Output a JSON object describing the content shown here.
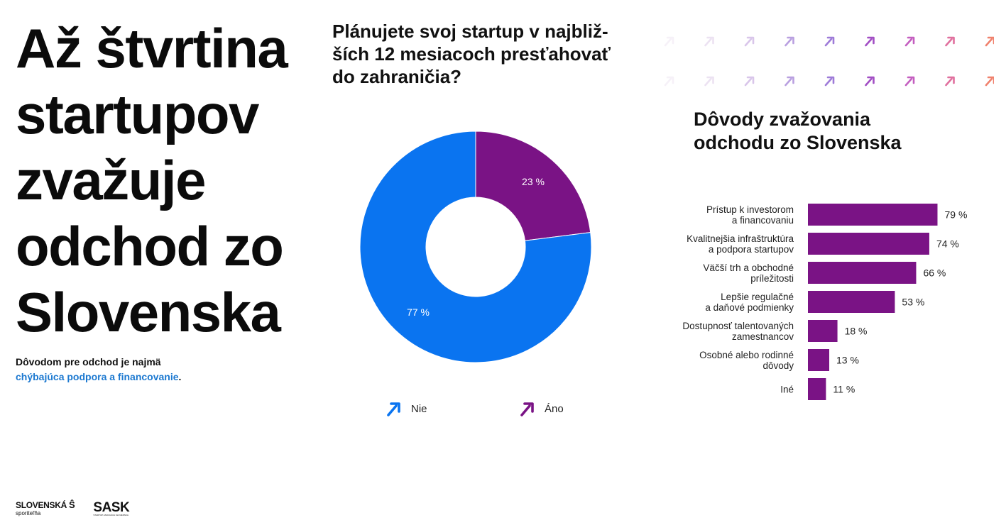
{
  "headline": {
    "lines": [
      "Až štvrtina",
      "startupov",
      "zvažuje",
      "odchod zo",
      "Slovenska"
    ]
  },
  "subline": {
    "text_1": "Dôvodom pre odchod je najmä",
    "highlight": "chýbajúca podpora a financovanie",
    "text_2": "."
  },
  "colors": {
    "blue": "#0a74f0",
    "purple": "#7a1385",
    "highlight_blue": "#1b78d0"
  },
  "chart_data": [
    {
      "type": "pie",
      "variant": "donut",
      "title": "Plánujete svoj startup v najbliž-ších 12 mesiacoch presťahovať do zahraničia?",
      "title_lines": [
        "Plánujete svoj startup v najbliž-",
        "ších 12 mesiacoch presťahovať",
        "do zahraničia?"
      ],
      "categories": [
        "Nie",
        "Áno"
      ],
      "values": [
        77,
        23
      ],
      "labels": [
        "77 %",
        "23 %"
      ],
      "colors": [
        "#0a74f0",
        "#7a1385"
      ],
      "legend": {
        "placement": "bottom",
        "icon": "arrow-up-right-icon"
      }
    },
    {
      "type": "bar",
      "orientation": "horizontal",
      "title": "Dôvody zvažovania odchodu zo Slovenska",
      "title_lines": [
        "Dôvody zvažovania",
        "odchodu zo Slovenska"
      ],
      "categories": [
        [
          "Prístup k investorom",
          "a financovaniu"
        ],
        [
          "Kvalitnejšia infraštruktúra",
          "a podpora startupov"
        ],
        [
          "Väčší trh a obchodné",
          "príležitosti"
        ],
        [
          "Lepšie regulačné",
          "a daňové podmienky"
        ],
        [
          "Dostupnosť talentovaných",
          "zamestnancov"
        ],
        [
          "Osobné alebo rodinné",
          "dôvody"
        ],
        [
          "Iné"
        ]
      ],
      "values": [
        79,
        74,
        66,
        53,
        18,
        13,
        11
      ],
      "labels": [
        "79 %",
        "74 %",
        "66 %",
        "53 %",
        "18 %",
        "13 %",
        "11 %"
      ],
      "unit": "%",
      "color": "#7a1385",
      "grid": false
    }
  ],
  "decoration": {
    "arrow_pattern": {
      "icon": "arrow-up-right-icon",
      "rows": 2,
      "cols": 9,
      "colors_from": "#f3eef7",
      "colors_to": "#f07a6b"
    }
  },
  "logos": {
    "slovenska_sporitelna": {
      "line_1": "SLOVENSKÁ",
      "line_2": "sporiteľňa"
    },
    "sask": {
      "name": "SASK",
      "tagline": "STARTUP ASOCIÁCIA SLOVENSKA"
    }
  }
}
